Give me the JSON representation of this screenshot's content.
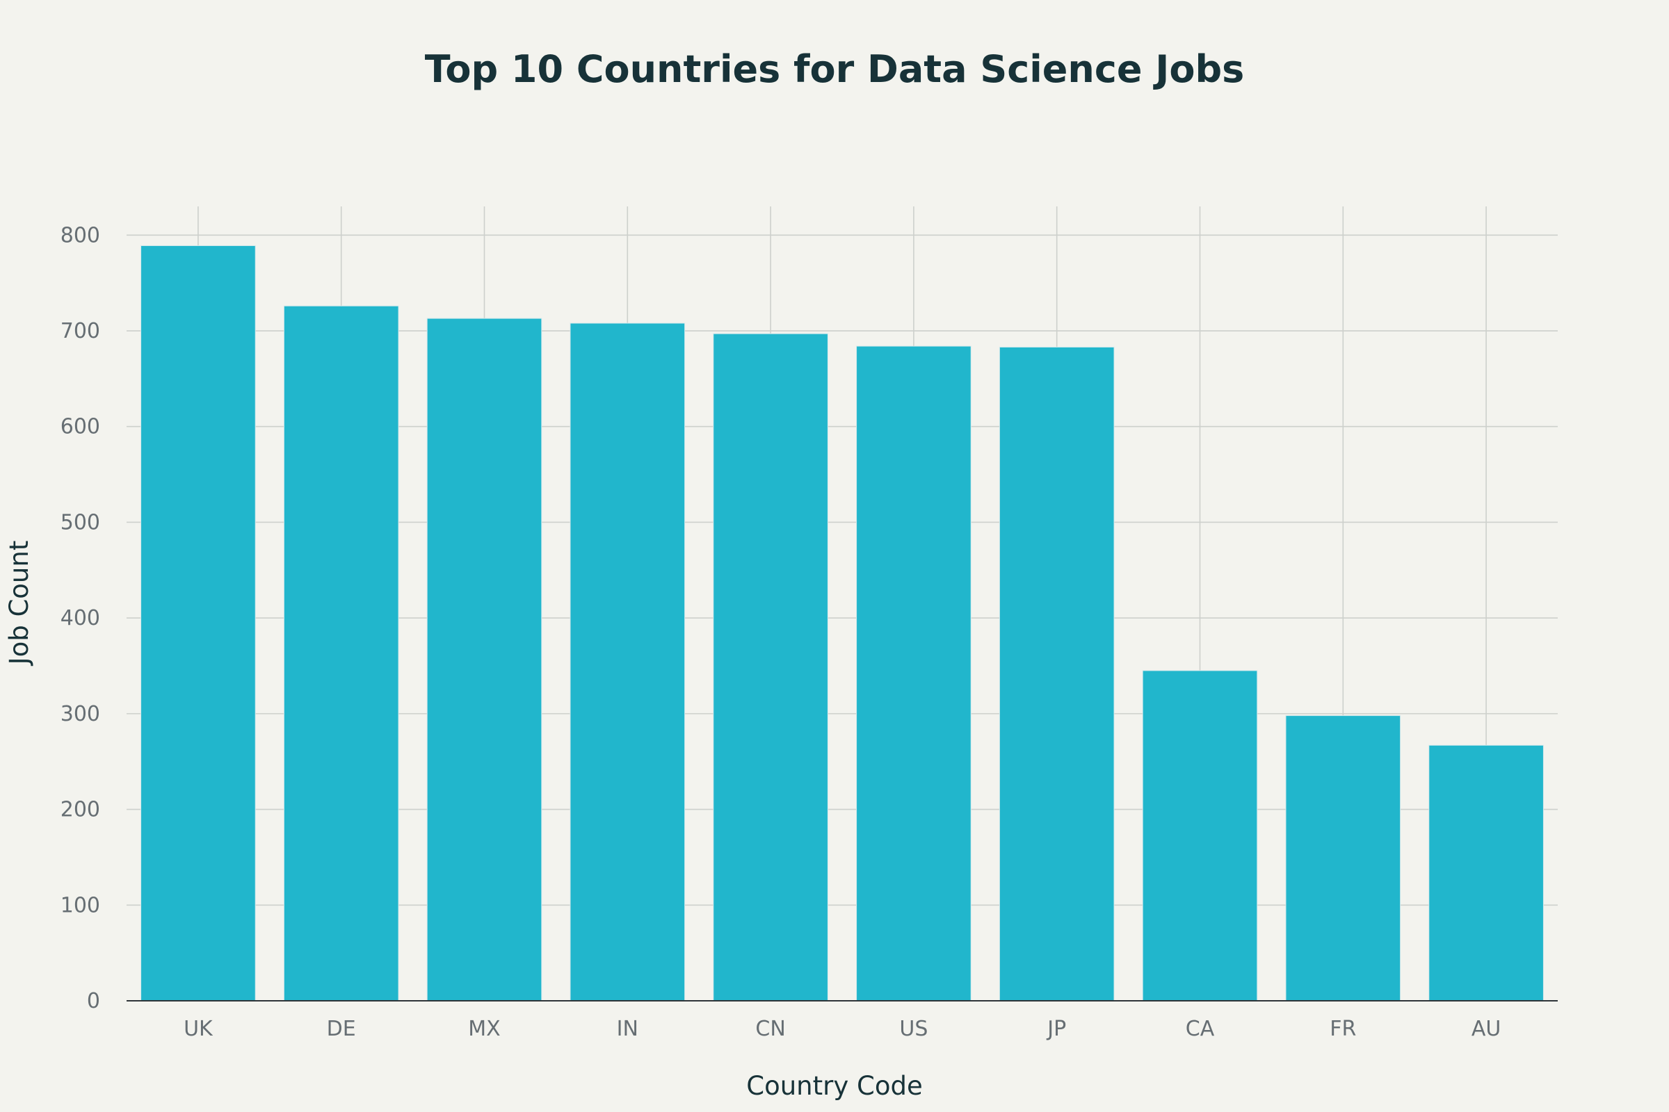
{
  "chart_data": {
    "type": "bar",
    "title": "Top 10 Countries for Data Science Jobs",
    "xlabel": "Country Code",
    "ylabel": "Job Count",
    "categories": [
      "UK",
      "DE",
      "MX",
      "IN",
      "CN",
      "US",
      "JP",
      "CA",
      "FR",
      "AU"
    ],
    "values": [
      789,
      726,
      713,
      708,
      697,
      684,
      683,
      345,
      298,
      267
    ],
    "ylim": [
      0,
      830
    ],
    "yticks": [
      0,
      100,
      200,
      300,
      400,
      500,
      600,
      700,
      800
    ],
    "grid": true,
    "legend": "none",
    "bar_color": "#21b6cc",
    "background_color": "#f3f3ee"
  }
}
